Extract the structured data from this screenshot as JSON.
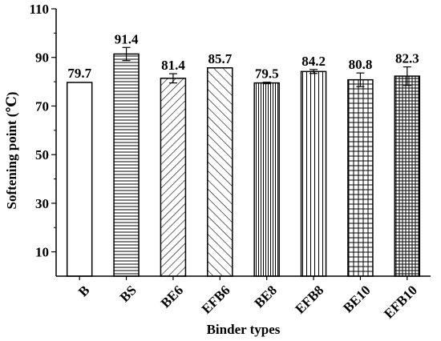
{
  "chart_data": {
    "type": "bar",
    "title": "",
    "xlabel": "Binder types",
    "ylabel": "Softening point (℃)",
    "ylim": [
      0,
      110
    ],
    "yticks": [
      10,
      30,
      50,
      70,
      90,
      110
    ],
    "categories": [
      "B",
      "BS",
      "BE6",
      "EFB6",
      "BE8",
      "EFB8",
      "BE10",
      "EFB10"
    ],
    "values": [
      79.7,
      91.4,
      81.4,
      85.7,
      79.5,
      84.2,
      80.8,
      82.3
    ],
    "value_labels": [
      "79.7",
      "91.4",
      "81.4",
      "85.7",
      "79.5",
      "84.2",
      "80.8",
      "82.3"
    ],
    "errors": [
      0,
      2.7,
      1.9,
      0,
      0.3,
      0.8,
      2.8,
      3.8
    ],
    "patterns": [
      "none",
      "horizontal",
      "diagonal",
      "diagonal-wide",
      "vertical-dense",
      "vertical",
      "grid",
      "grid-dense"
    ],
    "bar_color": "#ffffff",
    "stroke_color": "#000000",
    "grid": false,
    "legend": "none"
  }
}
